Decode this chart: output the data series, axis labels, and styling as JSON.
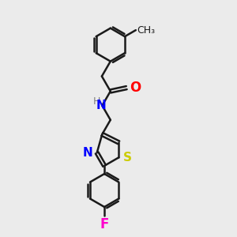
{
  "bg_color": "#ebebeb",
  "bond_color": "#1a1a1a",
  "N_color": "#0000ff",
  "O_color": "#ff0000",
  "S_color": "#cccc00",
  "F_color": "#ff00cc",
  "H_color": "#808080",
  "line_width": 1.8,
  "font_size": 10,
  "figsize": [
    3.0,
    3.0
  ],
  "dpi": 100,
  "xlim": [
    0,
    10
  ],
  "ylim": [
    0,
    10
  ]
}
